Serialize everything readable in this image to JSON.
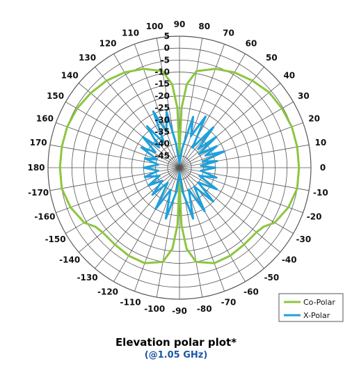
{
  "chart_data": {
    "type": "polar-line",
    "title": "Elevation polar plot*",
    "subtitle": "(@1.05 GHz)",
    "angle_labels": [
      "90",
      "80",
      "70",
      "60",
      "50",
      "40",
      "30",
      "20",
      "10",
      "0",
      "-10",
      "-20",
      "-30",
      "-40",
      "-50",
      "-60",
      "-70",
      "-80",
      "-90",
      "-100",
      "-110",
      "-120",
      "-130",
      "-140",
      "-150",
      "-160",
      "-170",
      "180",
      "170",
      "160",
      "150",
      "140",
      "130",
      "120",
      "110",
      "100"
    ],
    "angle_values": [
      90,
      80,
      70,
      60,
      50,
      40,
      30,
      20,
      10,
      0,
      -10,
      -20,
      -30,
      -40,
      -50,
      -60,
      -70,
      -80,
      -90,
      -100,
      -110,
      -120,
      -130,
      -140,
      -150,
      -160,
      -170,
      180,
      170,
      160,
      150,
      140,
      130,
      120,
      110,
      100
    ],
    "radial_labels": [
      "5",
      "0",
      "-5",
      "-10",
      "-15",
      "-20",
      "-25",
      "-30",
      "-35",
      "-40",
      "-45"
    ],
    "radial_values": [
      5,
      0,
      -5,
      -10,
      -15,
      -20,
      -25,
      -30,
      -35,
      -40,
      -45
    ],
    "rlim": [
      -50,
      5
    ],
    "grid": true,
    "legend_position": "bottom-right",
    "series": [
      {
        "name": "Co-Polar",
        "color": "#8cc63f",
        "points": [
          {
            "a": 0,
            "r": 0.0
          },
          {
            "a": 10,
            "r": 0.0
          },
          {
            "a": 20,
            "r": 0.0
          },
          {
            "a": 30,
            "r": -0.5
          },
          {
            "a": 40,
            "r": -1.0
          },
          {
            "a": 50,
            "r": -2.5
          },
          {
            "a": 60,
            "r": -4.0
          },
          {
            "a": 70,
            "r": -6.0
          },
          {
            "a": 80,
            "r": -9.0
          },
          {
            "a": 85,
            "r": -15.0
          },
          {
            "a": 88,
            "r": -25.0
          },
          {
            "a": 90,
            "r": -44.0
          },
          {
            "a": 92,
            "r": -25.0
          },
          {
            "a": 95,
            "r": -15.0
          },
          {
            "a": 100,
            "r": -9.0
          },
          {
            "a": 110,
            "r": -6.0
          },
          {
            "a": 120,
            "r": -4.0
          },
          {
            "a": 130,
            "r": -2.5
          },
          {
            "a": 140,
            "r": -1.5
          },
          {
            "a": 150,
            "r": -0.5
          },
          {
            "a": 160,
            "r": 0.0
          },
          {
            "a": 170,
            "r": 0.0
          },
          {
            "a": 180,
            "r": 0.0
          },
          {
            "a": -170,
            "r": 0.0
          },
          {
            "a": -160,
            "r": -1.5
          },
          {
            "a": -150,
            "r": -4.0
          },
          {
            "a": -145,
            "r": -7.0
          },
          {
            "a": -140,
            "r": -8.0
          },
          {
            "a": -130,
            "r": -8.0
          },
          {
            "a": -120,
            "r": -7.5
          },
          {
            "a": -110,
            "r": -7.5
          },
          {
            "a": -100,
            "r": -10.0
          },
          {
            "a": -95,
            "r": -16.0
          },
          {
            "a": -92,
            "r": -26.0
          },
          {
            "a": -90,
            "r": -44.0
          },
          {
            "a": -88,
            "r": -26.0
          },
          {
            "a": -85,
            "r": -16.0
          },
          {
            "a": -80,
            "r": -10.0
          },
          {
            "a": -70,
            "r": -7.5
          },
          {
            "a": -60,
            "r": -7.5
          },
          {
            "a": -50,
            "r": -8.0
          },
          {
            "a": -40,
            "r": -8.0
          },
          {
            "a": -35,
            "r": -7.0
          },
          {
            "a": -30,
            "r": -4.0
          },
          {
            "a": -20,
            "r": -1.5
          },
          {
            "a": -10,
            "r": 0.0
          },
          {
            "a": 0,
            "r": 0.0
          }
        ]
      },
      {
        "name": "X-Polar",
        "color": "#1ea1dc",
        "points": [
          {
            "a": 0,
            "r": -35.0
          },
          {
            "a": 5,
            "r": -41.0
          },
          {
            "a": 10,
            "r": -34.0
          },
          {
            "a": 15,
            "r": -40.0
          },
          {
            "a": 20,
            "r": -30.0
          },
          {
            "a": 25,
            "r": -38.0
          },
          {
            "a": 30,
            "r": -32.0
          },
          {
            "a": 35,
            "r": -40.0
          },
          {
            "a": 40,
            "r": -30.0
          },
          {
            "a": 45,
            "r": -39.0
          },
          {
            "a": 50,
            "r": -28.0
          },
          {
            "a": 57,
            "r": -40.0
          },
          {
            "a": 63,
            "r": -26.0
          },
          {
            "a": 70,
            "r": -36.0
          },
          {
            "a": 75,
            "r": -28.0
          },
          {
            "a": 82,
            "r": -42.0
          },
          {
            "a": 90,
            "r": -48.0
          },
          {
            "a": 98,
            "r": -40.0
          },
          {
            "a": 103,
            "r": -26.0
          },
          {
            "a": 110,
            "r": -34.0
          },
          {
            "a": 115,
            "r": -24.0
          },
          {
            "a": 122,
            "r": -38.0
          },
          {
            "a": 128,
            "r": -28.0
          },
          {
            "a": 135,
            "r": -38.0
          },
          {
            "a": 140,
            "r": -30.0
          },
          {
            "a": 147,
            "r": -38.0
          },
          {
            "a": 152,
            "r": -32.0
          },
          {
            "a": 160,
            "r": -40.0
          },
          {
            "a": 165,
            "r": -35.0
          },
          {
            "a": 172,
            "r": -41.0
          },
          {
            "a": 180,
            "r": -35.0
          },
          {
            "a": -172,
            "r": -41.0
          },
          {
            "a": -165,
            "r": -35.0
          },
          {
            "a": -158,
            "r": -41.0
          },
          {
            "a": -150,
            "r": -35.0
          },
          {
            "a": -143,
            "r": -41.0
          },
          {
            "a": -135,
            "r": -34.0
          },
          {
            "a": -128,
            "r": -42.0
          },
          {
            "a": -120,
            "r": -30.0
          },
          {
            "a": -112,
            "r": -40.0
          },
          {
            "a": -105,
            "r": -28.0
          },
          {
            "a": -97,
            "r": -40.0
          },
          {
            "a": -90,
            "r": -48.0
          },
          {
            "a": -83,
            "r": -40.0
          },
          {
            "a": -75,
            "r": -28.0
          },
          {
            "a": -67,
            "r": -40.0
          },
          {
            "a": -60,
            "r": -29.0
          },
          {
            "a": -52,
            "r": -40.0
          },
          {
            "a": -45,
            "r": -30.0
          },
          {
            "a": -38,
            "r": -40.0
          },
          {
            "a": -30,
            "r": -32.0
          },
          {
            "a": -22,
            "r": -41.0
          },
          {
            "a": -15,
            "r": -34.0
          },
          {
            "a": -8,
            "r": -41.0
          },
          {
            "a": 0,
            "r": -35.0
          }
        ]
      }
    ]
  }
}
